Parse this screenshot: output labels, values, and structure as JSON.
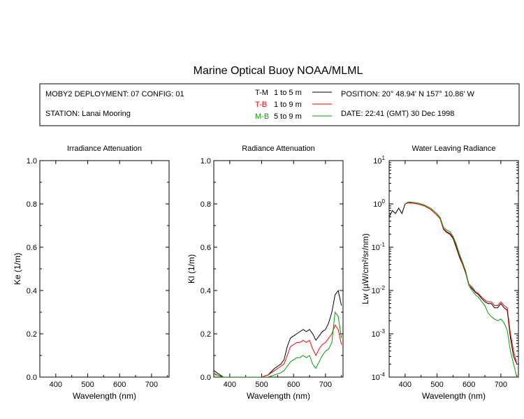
{
  "figure": {
    "title": "Marine Optical Buoy NOAA/MLML",
    "info": {
      "deployment": "MOBY2 DEPLOYMENT: 07 CONFIG: 01",
      "station": "STATION: Lanai Mooring",
      "position": "POSITION: 20° 48.94' N   157° 10.86' W",
      "date": "DATE: 22:41 (GMT) 30 Dec 1998"
    },
    "legend": [
      {
        "code": "T-M",
        "range": "1 to 5  m",
        "color": "#000000"
      },
      {
        "code": "T-B",
        "range": "1 to 9  m",
        "color": "#ff0000"
      },
      {
        "code": "M-B",
        "range": "5 to 9  m",
        "color": "#00a000"
      }
    ]
  },
  "chart_data": [
    {
      "type": "line",
      "title": "Irradiance Attenuation",
      "xlabel": "Wavelength (nm)",
      "ylabel": "Ke  (1/m)",
      "xlim": [
        350,
        755
      ],
      "ylim": [
        0,
        1
      ],
      "xticks": [
        "400",
        "500",
        "600",
        "700"
      ],
      "yticks": [
        "0.0",
        "0.2",
        "0.4",
        "0.6",
        "0.8",
        "1.0"
      ],
      "series": []
    },
    {
      "type": "line",
      "title": "Radiance Attenuation",
      "xlabel": "Wavelength (nm)",
      "ylabel": "Kl  (1/m)",
      "xlim": [
        350,
        755
      ],
      "ylim": [
        0,
        1
      ],
      "xticks": [
        "400",
        "500",
        "600",
        "700"
      ],
      "yticks": [
        "0.0",
        "0.2",
        "0.4",
        "0.6",
        "0.8",
        "1.0"
      ],
      "series": [
        {
          "legend": "T-M",
          "color": "#000000",
          "x": [
            350,
            360,
            380,
            400,
            420,
            450,
            480,
            500,
            520,
            540,
            560,
            570,
            580,
            590,
            600,
            610,
            620,
            630,
            640,
            650,
            660,
            670,
            680,
            690,
            700,
            710,
            720,
            730,
            740,
            750
          ],
          "y": [
            0.03,
            0.02,
            0.0,
            0.0,
            0.0,
            0.0,
            0.0,
            0.0,
            0.01,
            0.04,
            0.06,
            0.08,
            0.14,
            0.18,
            0.19,
            0.2,
            0.21,
            0.22,
            0.21,
            0.22,
            0.2,
            0.17,
            0.19,
            0.21,
            0.22,
            0.25,
            0.3,
            0.38,
            0.4,
            0.33
          ]
        },
        {
          "legend": "T-B",
          "color": "#ff0000",
          "x": [
            350,
            360,
            380,
            400,
            420,
            450,
            480,
            500,
            520,
            540,
            560,
            570,
            580,
            590,
            600,
            610,
            620,
            630,
            640,
            650,
            660,
            670,
            680,
            690,
            700,
            710,
            720,
            730,
            740,
            750
          ],
          "y": [
            0.02,
            0.01,
            0.0,
            0.0,
            0.0,
            0.0,
            0.0,
            0.0,
            0.01,
            0.03,
            0.05,
            0.06,
            0.1,
            0.14,
            0.15,
            0.16,
            0.16,
            0.17,
            0.16,
            0.17,
            0.13,
            0.1,
            0.13,
            0.15,
            0.16,
            0.18,
            0.2,
            0.24,
            0.22,
            0.15
          ]
        },
        {
          "legend": "M-B",
          "color": "#00a000",
          "x": [
            350,
            360,
            380,
            400,
            420,
            450,
            480,
            500,
            520,
            540,
            560,
            570,
            580,
            590,
            600,
            610,
            620,
            630,
            640,
            650,
            660,
            670,
            680,
            690,
            700,
            710,
            720,
            730,
            740,
            750
          ],
          "y": [
            0.01,
            0.01,
            0.0,
            0.0,
            0.0,
            0.0,
            0.0,
            0.0,
            0.0,
            0.01,
            0.02,
            0.03,
            0.05,
            0.07,
            0.08,
            0.09,
            0.09,
            0.1,
            0.09,
            0.1,
            0.06,
            0.04,
            0.07,
            0.1,
            0.12,
            0.13,
            0.16,
            0.3,
            0.28,
            0.18
          ]
        }
      ]
    },
    {
      "type": "line",
      "title": "Water Leaving Radiance",
      "xlabel": "Wavelength (nm)",
      "ylabel": "Lw  (µW/cm²/sr/nm)",
      "xlim": [
        350,
        755
      ],
      "ylim": [
        0.0001,
        10
      ],
      "yscale": "log",
      "xticks": [
        "400",
        "500",
        "600",
        "700"
      ],
      "yticks": [
        {
          "base": "10",
          "exp": "-4"
        },
        {
          "base": "10",
          "exp": "-3"
        },
        {
          "base": "10",
          "exp": "-2"
        },
        {
          "base": "10",
          "exp": "-1"
        },
        {
          "base": "10",
          "exp": "0"
        },
        {
          "base": "10",
          "exp": "1"
        }
      ],
      "series": [
        {
          "legend": "T-M",
          "color": "#000000",
          "x": [
            350,
            360,
            370,
            380,
            390,
            400,
            410,
            420,
            440,
            460,
            480,
            500,
            510,
            520,
            530,
            540,
            550,
            560,
            570,
            580,
            590,
            600,
            610,
            620,
            630,
            640,
            650,
            660,
            670,
            680,
            690,
            700,
            710,
            720,
            730,
            740,
            750
          ],
          "y": [
            0.5,
            0.7,
            0.6,
            0.8,
            0.6,
            1.0,
            1.1,
            1.05,
            1.0,
            0.9,
            0.75,
            0.55,
            0.45,
            0.26,
            0.22,
            0.2,
            0.16,
            0.1,
            0.06,
            0.04,
            0.025,
            0.013,
            0.011,
            0.009,
            0.008,
            0.0065,
            0.0055,
            0.005,
            0.005,
            0.004,
            0.004,
            0.005,
            0.004,
            0.0035,
            0.0008,
            0.0003,
            0.0002
          ]
        },
        {
          "legend": "T-B",
          "color": "#ff0000",
          "x": [
            400,
            410,
            420,
            440,
            460,
            480,
            500,
            510,
            520,
            530,
            540,
            550,
            560,
            570,
            580,
            590,
            600,
            610,
            620,
            630,
            640,
            650,
            660,
            670,
            680,
            690,
            700,
            710,
            720,
            730,
            740,
            750
          ],
          "y": [
            1.0,
            1.05,
            1.05,
            1.0,
            0.9,
            0.75,
            0.55,
            0.45,
            0.27,
            0.23,
            0.21,
            0.17,
            0.11,
            0.065,
            0.042,
            0.026,
            0.014,
            0.012,
            0.0095,
            0.0085,
            0.007,
            0.006,
            0.0055,
            0.0055,
            0.0045,
            0.0045,
            0.0055,
            0.0045,
            0.004,
            0.001,
            0.0004,
            0.0002
          ]
        },
        {
          "legend": "M-B",
          "color": "#00a000",
          "x": [
            400,
            410,
            420,
            440,
            460,
            480,
            500,
            510,
            520,
            530,
            540,
            550,
            560,
            570,
            580,
            590,
            600,
            610,
            620,
            630,
            640,
            650,
            660,
            670,
            680,
            690,
            700,
            710,
            720,
            730,
            740,
            750
          ],
          "y": [
            1.0,
            1.1,
            1.1,
            1.05,
            0.95,
            0.8,
            0.6,
            0.48,
            0.29,
            0.25,
            0.23,
            0.18,
            0.12,
            0.07,
            0.045,
            0.028,
            0.013,
            0.01,
            0.008,
            0.007,
            0.0055,
            0.0045,
            0.003,
            0.0025,
            0.0022,
            0.002,
            0.0022,
            0.0018,
            0.0012,
            0.0004,
            0.0002,
            0.0001
          ]
        }
      ]
    }
  ]
}
